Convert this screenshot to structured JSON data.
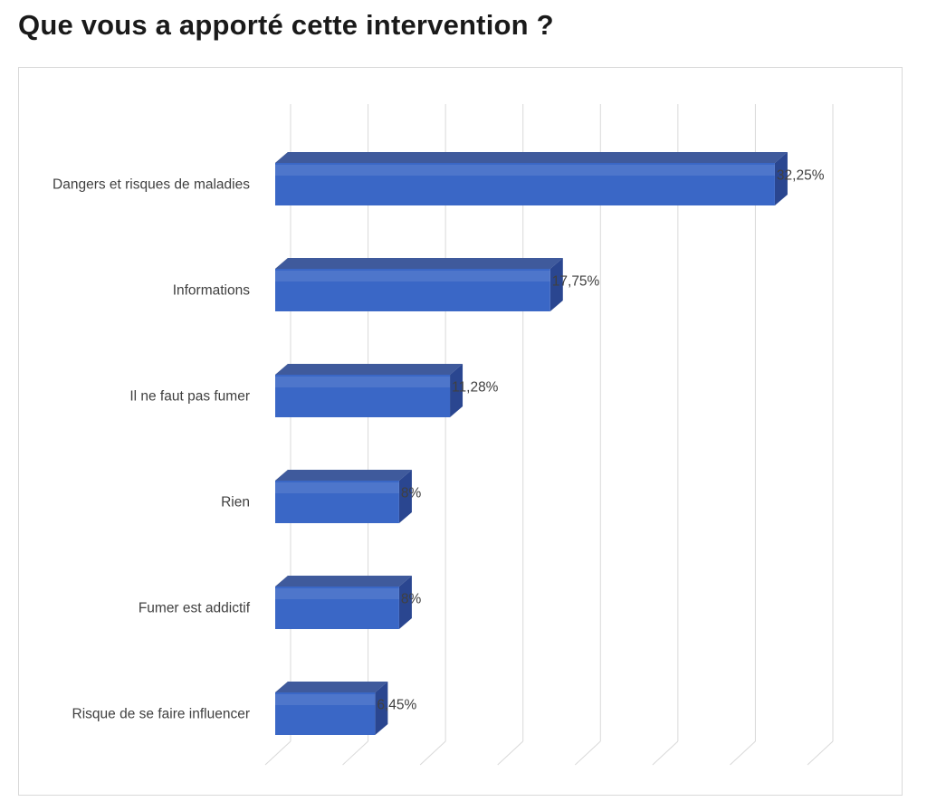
{
  "page": {
    "title": "Que vous a apporté cette intervention ?"
  },
  "colors": {
    "bar_front": "#3a67c6",
    "bar_top": "#3f5a9c",
    "bar_side": "#2a4690",
    "grid": "#d9d9d9",
    "text": "#404040"
  },
  "chart_data": {
    "type": "bar",
    "orientation": "horizontal",
    "style": "3d",
    "title": "Que vous a apporté cette intervention ?",
    "categories": [
      "Dangers et risques de maladies",
      "Informations",
      "Il ne faut pas fumer",
      "Rien",
      "Fumer est addictif",
      "Risque de se faire influencer"
    ],
    "values": [
      32.25,
      17.75,
      11.28,
      8,
      8,
      6.45
    ],
    "value_labels": [
      "32,25%",
      "17,75%",
      "11,28%",
      "8%",
      "8%",
      "6,45%"
    ],
    "xlim": [
      0,
      35
    ],
    "x_grid_step": 5,
    "grid": true,
    "legend": "none",
    "xlabel": "",
    "ylabel": ""
  }
}
